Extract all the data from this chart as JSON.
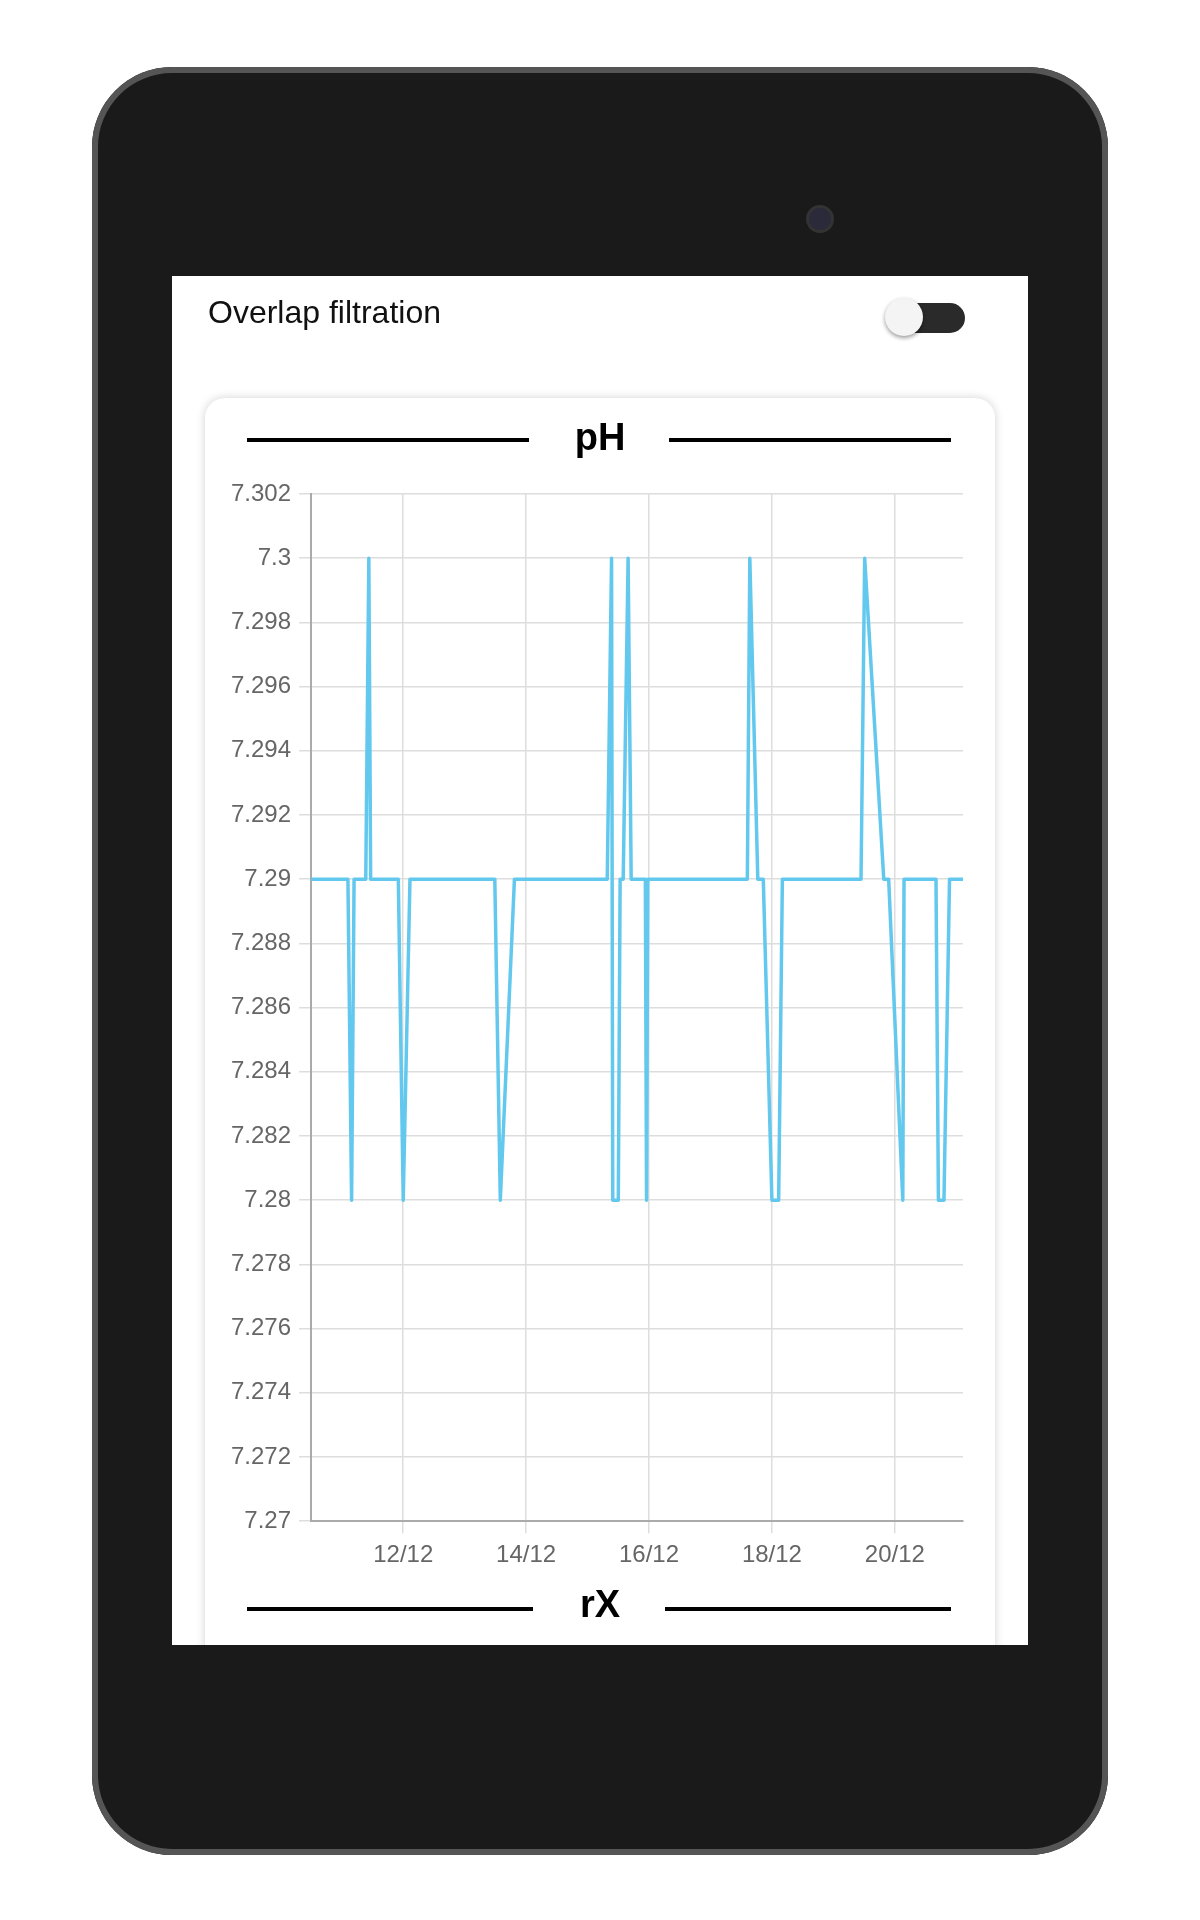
{
  "chart_data": {
    "type": "line",
    "title": "pH",
    "annotations": [
      "Overlap filtration",
      "rX"
    ],
    "x": [
      "--12-10T12:00",
      "--12-11T02:24",
      "--12-11T03:50",
      "--12-11T04:48",
      "--12-11T09:22",
      "--12-11T10:34",
      "--12-11T11:17",
      "--12-11T22:05",
      "--12-12T00:00",
      "--12-12T02:38",
      "--12-13T11:46",
      "--12-13T13:55",
      "--12-13T19:26",
      "--12-15T07:41",
      "--12-15T09:22",
      "--12-15T09:50",
      "--12-15T12:00",
      "--12-15T12:43",
      "--12-15T13:55",
      "--12-15T15:50",
      "--12-15T17:02",
      "--12-15T22:34",
      "--12-15T23:02",
      "--12-15T23:31",
      "--12-17T14:24",
      "--12-17T15:22",
      "--12-17T18:29",
      "--12-17T20:38",
      "--12-18T00:00",
      "--12-18T02:38",
      "--12-18T04:05",
      "--12-19T10:48",
      "--12-19T12:14",
      "--12-19T19:41",
      "--12-19T21:36",
      "--12-20T03:07",
      "--12-20T03:36",
      "--12-20T16:05",
      "--12-20T17:02",
      "--12-20T19:12",
      "--12-20T21:22",
      "--12-21T02:38"
    ],
    "series": [
      {
        "color": "#62c8ee",
        "values": [
          7.29,
          7.29,
          7.28,
          7.29,
          7.29,
          7.3,
          7.29,
          7.29,
          7.28,
          7.29,
          7.29,
          7.28,
          7.29,
          7.29,
          7.3,
          7.28,
          7.28,
          7.29,
          7.29,
          7.3,
          7.29,
          7.29,
          7.28,
          7.29,
          7.29,
          7.3,
          7.29,
          7.29,
          7.28,
          7.28,
          7.29,
          7.29,
          7.3,
          7.29,
          7.29,
          7.28,
          7.29,
          7.29,
          7.28,
          7.28,
          7.29,
          7.29
        ]
      }
    ],
    "xlim": [
      "--12-10T12:00",
      "--12-21T02:38"
    ],
    "xticks": [
      {
        "value": "--12-12",
        "label": "12/12"
      },
      {
        "value": "--12-14",
        "label": "14/12"
      },
      {
        "value": "--12-16",
        "label": "16/12"
      },
      {
        "value": "--12-18",
        "label": "18/12"
      },
      {
        "value": "--12-20",
        "label": "20/12"
      }
    ],
    "ylim": [
      7.27,
      7.302
    ],
    "yticks": [
      7.27,
      7.272,
      7.274,
      7.276,
      7.278,
      7.28,
      7.282,
      7.284,
      7.286,
      7.288,
      7.29,
      7.292,
      7.294,
      7.296,
      7.298,
      7.3,
      7.302
    ],
    "grid": true,
    "line_style": "solid"
  }
}
